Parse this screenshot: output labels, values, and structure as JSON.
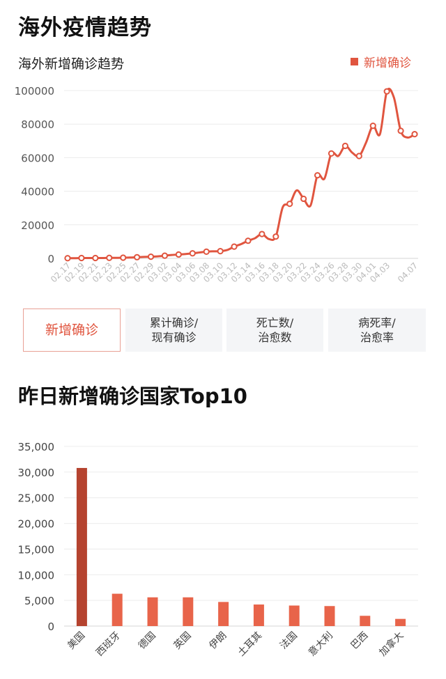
{
  "header": {
    "title": "海外疫情趋势"
  },
  "trend": {
    "subtitle": "海外新增确诊趋势",
    "legend_label": "新增确诊",
    "color": "#e0553f"
  },
  "tabs": [
    {
      "label": "新增确诊",
      "active": true
    },
    {
      "label": "累计确诊/\n现有确诊",
      "active": false
    },
    {
      "label": "死亡数/\n治愈数",
      "active": false
    },
    {
      "label": "病死率/\n治愈率",
      "active": false
    }
  ],
  "bar_section": {
    "title": "昨日新增确诊国家Top10"
  },
  "chart_data": [
    {
      "type": "line",
      "title": "海外新增确诊趋势",
      "series": [
        {
          "name": "新增确诊",
          "x": [
            "02.17",
            "02.18",
            "02.19",
            "02.20",
            "02.21",
            "02.22",
            "02.23",
            "02.24",
            "02.25",
            "02.26",
            "02.27",
            "02.28",
            "02.29",
            "03.01",
            "03.02",
            "03.03",
            "03.04",
            "03.05",
            "03.06",
            "03.07",
            "03.08",
            "03.09",
            "03.10",
            "03.11",
            "03.12",
            "03.13",
            "03.14",
            "03.15",
            "03.16",
            "03.17",
            "03.18",
            "03.19",
            "03.20",
            "03.21",
            "03.22",
            "03.23",
            "03.24",
            "03.25",
            "03.26",
            "03.27",
            "03.28",
            "03.29",
            "03.30",
            "03.31",
            "04.01",
            "04.02",
            "04.03",
            "04.04",
            "04.05",
            "04.06",
            "04.07"
          ],
          "values": [
            100,
            100,
            200,
            200,
            200,
            200,
            300,
            300,
            400,
            500,
            700,
            900,
            1000,
            1200,
            1600,
            2000,
            2300,
            2600,
            3000,
            3500,
            4000,
            4200,
            4300,
            5000,
            7000,
            8500,
            10500,
            12000,
            14500,
            11500,
            13000,
            30500,
            32500,
            40500,
            35500,
            31500,
            49500,
            47500,
            62500,
            61000,
            67000,
            63000,
            61000,
            69000,
            79000,
            74000,
            99500,
            96000,
            76000,
            72000,
            74000
          ],
          "marked_x": [
            "02.17",
            "02.19",
            "02.21",
            "02.23",
            "02.25",
            "02.27",
            "02.29",
            "03.02",
            "03.04",
            "03.06",
            "03.08",
            "03.10",
            "03.12",
            "03.14",
            "03.16",
            "03.18",
            "03.20",
            "03.22",
            "03.24",
            "03.26",
            "03.28",
            "03.30",
            "04.01",
            "04.03",
            "04.05",
            "04.07"
          ]
        }
      ],
      "x_tick_labels": [
        "02.17",
        "02.19",
        "02.21",
        "02.23",
        "02.25",
        "02.27",
        "02.29",
        "03.02",
        "03.04",
        "03.06",
        "03.08",
        "03.10",
        "03.12",
        "03.14",
        "03.16",
        "03.18",
        "03.20",
        "03.22",
        "03.24",
        "03.26",
        "03.28",
        "03.30",
        "04.01",
        "04.03",
        "04.07"
      ],
      "y_ticks": [
        "0",
        "20000",
        "40000",
        "60000",
        "80000",
        "100000"
      ],
      "ylim": [
        0,
        100000
      ],
      "grid": true,
      "legend": "top-right",
      "color": "#e0553f"
    },
    {
      "type": "bar",
      "title": "昨日新增确诊国家Top10",
      "categories": [
        "美国",
        "西班牙",
        "德国",
        "英国",
        "伊朗",
        "土耳其",
        "法国",
        "意大利",
        "巴西",
        "加拿大"
      ],
      "values": [
        30800,
        6300,
        5600,
        5600,
        4700,
        4200,
        4000,
        3900,
        2000,
        1400
      ],
      "y_ticks": [
        "0",
        "5,000",
        "10,000",
        "15,000",
        "20,000",
        "25,000",
        "30,000",
        "35,000"
      ],
      "ylim": [
        0,
        35000
      ],
      "grid": true,
      "colors": {
        "top": "#b5432f",
        "rest": "#e8644a"
      }
    }
  ]
}
